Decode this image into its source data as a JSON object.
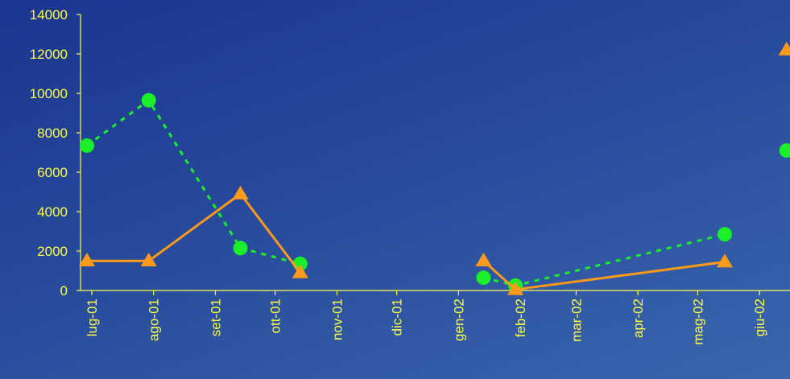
{
  "chart_data": {
    "type": "line",
    "title": "",
    "xlabel": "",
    "ylabel": "",
    "ylim": [
      0,
      14000
    ],
    "y_ticks": [
      0,
      2000,
      4000,
      6000,
      8000,
      10000,
      12000,
      14000
    ],
    "x_ticks": [
      "lug-01",
      "ago-01",
      "set-01",
      "ott-01",
      "nov-01",
      "dic-01",
      "gen-02",
      "feb-02",
      "mar-02",
      "apr-02",
      "mag-02",
      "giu-02"
    ],
    "grid": false,
    "legend": "none",
    "series": [
      {
        "color": "#ff9a1a",
        "style": "solid",
        "marker": "triangle",
        "segments": [
          [
            [
              "2001-07-01",
              1500
            ],
            [
              "2001-08-01",
              1500
            ],
            [
              "2001-09-16",
              4900
            ],
            [
              "2001-10-16",
              900
            ]
          ],
          [
            [
              "2002-01-16",
              1500
            ],
            [
              "2002-02-01",
              50
            ],
            [
              "2002-05-17",
              1450
            ]
          ],
          [
            [
              "2002-06-17",
              12200
            ]
          ]
        ]
      },
      {
        "color": "#1bef2a",
        "style": "dotted",
        "marker": "circle",
        "segments": [
          [
            [
              "2001-07-01",
              7350
            ],
            [
              "2001-08-01",
              9650
            ],
            [
              "2001-09-16",
              2150
            ],
            [
              "2001-10-16",
              1350
            ]
          ],
          [
            [
              "2002-01-16",
              650
            ],
            [
              "2002-02-01",
              250
            ],
            [
              "2002-05-17",
              2850
            ]
          ],
          [
            [
              "2002-06-17",
              7100
            ]
          ]
        ]
      }
    ]
  }
}
